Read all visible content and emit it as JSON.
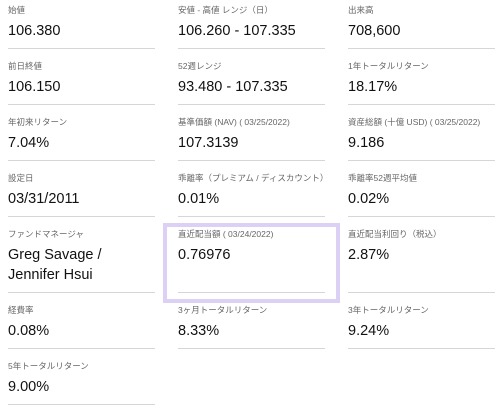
{
  "items": [
    {
      "label": "始値",
      "value": "106.380"
    },
    {
      "label": "安値 - 高値 レンジ（日）",
      "value": "106.260 - 107.335"
    },
    {
      "label": "出来高",
      "value": "708,600"
    },
    {
      "label": "前日終値",
      "value": "106.150"
    },
    {
      "label": "52週レンジ",
      "value": "93.480 - 107.335"
    },
    {
      "label": "1年トータルリターン",
      "value": "18.17%"
    },
    {
      "label": "年初来リターン",
      "value": "7.04%"
    },
    {
      "label": "基準価額 (NAV) ( 03/25/2022)",
      "value": "107.3139"
    },
    {
      "label": "資産総額 (十億 USD) ( 03/25/2022)",
      "value": "9.186"
    },
    {
      "label": "設定日",
      "value": "03/31/2011"
    },
    {
      "label": "乖離率（プレミアム / ディスカウント）",
      "value": "0.01%"
    },
    {
      "label": "乖離率52週平均値",
      "value": "0.02%"
    },
    {
      "label": "ファンドマネージャ",
      "value": "Greg Savage / Jennifer Hsui"
    },
    {
      "label": "直近配当額 ( 03/24/2022)",
      "value": "0.76976"
    },
    {
      "label": "直近配当利回り（税込）",
      "value": "2.87%"
    },
    {
      "label": "経費率",
      "value": "0.08%"
    },
    {
      "label": "3ヶ月トータルリターン",
      "value": "8.33%"
    },
    {
      "label": "3年トータルリターン",
      "value": "9.24%"
    },
    {
      "label": "5年トータルリターン",
      "value": "9.00%"
    }
  ]
}
